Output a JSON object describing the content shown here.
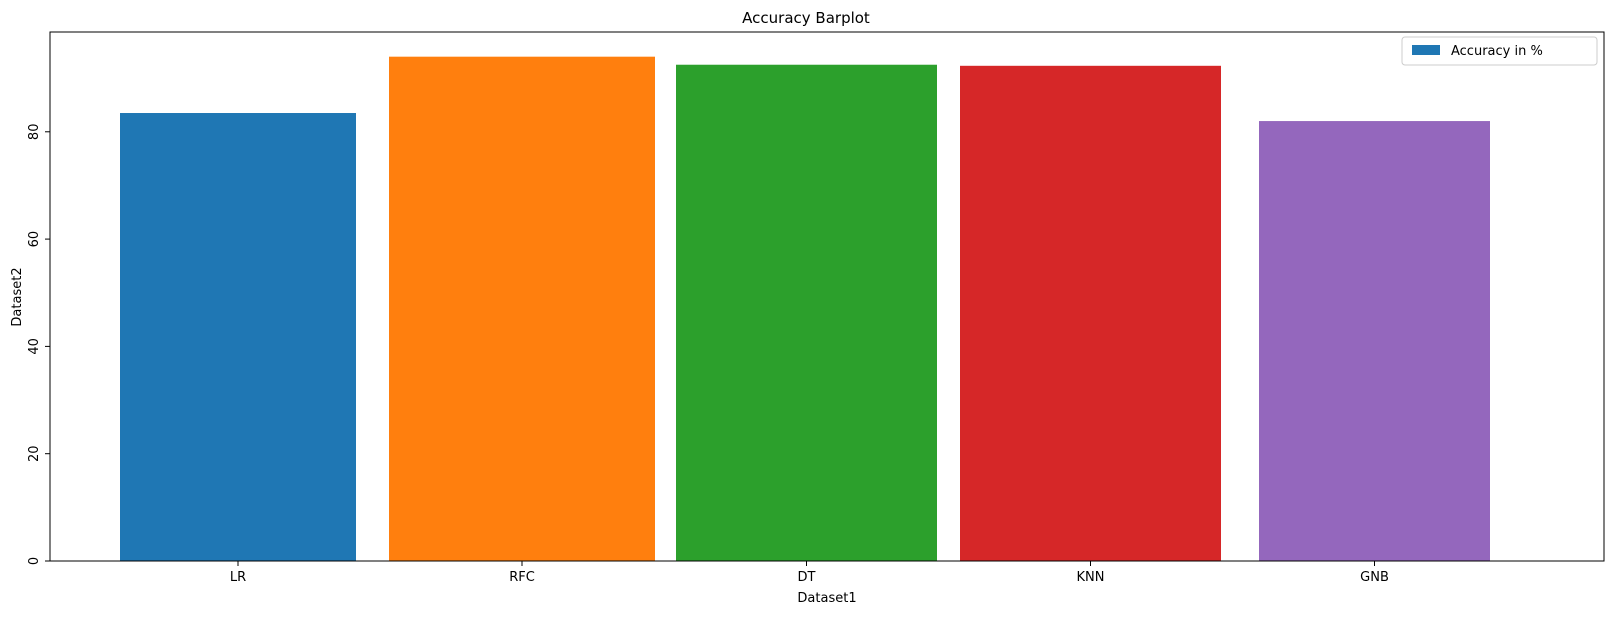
{
  "chart_data": {
    "type": "bar",
    "title": "Accuracy Barplot",
    "xlabel": "Dataset1",
    "ylabel": "Dataset2",
    "categories": [
      "LR",
      "RFC",
      "DT",
      "KNN",
      "GNB"
    ],
    "values": [
      83.5,
      94.0,
      92.5,
      92.3,
      82.0
    ],
    "colors": [
      "#1f77b4",
      "#ff7f0e",
      "#2ca02c",
      "#d62728",
      "#9467bd"
    ],
    "ylim": [
      0,
      98.6
    ],
    "yticks": [
      0,
      20,
      40,
      60,
      80
    ],
    "grid": false,
    "legend": {
      "entries": [
        {
          "label": "Accuracy in %",
          "color": "#1f77b4"
        }
      ],
      "placement": "top-right"
    }
  }
}
